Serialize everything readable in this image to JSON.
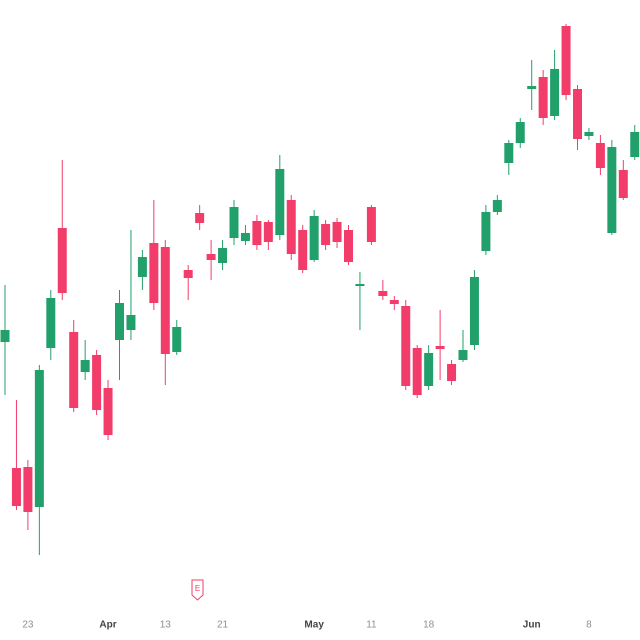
{
  "chart_data": {
    "type": "candlestick",
    "categories": [
      null,
      null,
      "23",
      null,
      null,
      null,
      null,
      null,
      null,
      "Apr",
      null,
      null,
      null,
      null,
      "13",
      null,
      null,
      null,
      null,
      "21",
      null,
      null,
      null,
      null,
      null,
      null,
      null,
      "May",
      null,
      null,
      null,
      null,
      "11",
      null,
      null,
      null,
      null,
      "18",
      null,
      null,
      null,
      null,
      null,
      null,
      null,
      null,
      "Jun",
      null,
      null,
      null,
      null,
      "8",
      null,
      null,
      null,
      null
    ],
    "open": [
      298,
      172,
      173,
      133,
      292,
      412,
      308,
      268,
      285,
      252,
      300,
      310,
      363,
      397,
      393,
      288,
      370,
      427,
      386,
      377,
      402,
      399,
      419,
      418,
      405,
      440,
      410,
      380,
      416,
      418,
      410,
      354,
      433,
      349,
      340,
      334,
      292,
      254,
      294,
      276,
      280,
      295,
      389,
      428,
      477,
      497,
      551,
      563,
      524,
      614,
      551,
      504,
      497,
      407,
      470,
      483
    ],
    "high": [
      355,
      240,
      180,
      275,
      350,
      480,
      320,
      300,
      290,
      260,
      350,
      410,
      390,
      440,
      400,
      320,
      375,
      435,
      400,
      400,
      440,
      415,
      425,
      420,
      485,
      445,
      415,
      430,
      420,
      422,
      415,
      368,
      435,
      360,
      344,
      340,
      295,
      295,
      330,
      280,
      310,
      370,
      435,
      445,
      500,
      522,
      580,
      570,
      590,
      616,
      555,
      512,
      505,
      500,
      480,
      515
    ],
    "low": [
      245,
      130,
      110,
      85,
      280,
      340,
      228,
      260,
      225,
      200,
      260,
      300,
      350,
      330,
      255,
      285,
      340,
      410,
      360,
      370,
      395,
      395,
      390,
      390,
      400,
      380,
      367,
      378,
      390,
      392,
      375,
      310,
      395,
      340,
      330,
      250,
      242,
      250,
      260,
      255,
      278,
      290,
      385,
      425,
      465,
      492,
      530,
      515,
      520,
      540,
      490,
      500,
      465,
      405,
      440,
      480
    ],
    "close": [
      310,
      134,
      128,
      270,
      342,
      347,
      232,
      280,
      230,
      205,
      337,
      325,
      383,
      337,
      286,
      313,
      362,
      417,
      380,
      392,
      433,
      407,
      395,
      398,
      471,
      386,
      370,
      424,
      395,
      398,
      378,
      356,
      398,
      344,
      336,
      254,
      245,
      287,
      291,
      259,
      290,
      363,
      428,
      440,
      497,
      518,
      554,
      522,
      571,
      545,
      501,
      508,
      472,
      493,
      442,
      508
    ],
    "up_color": "#22a06b",
    "down_color": "#f23d6a",
    "ylim": [
      0,
      640
    ]
  },
  "earnings_marker": "E"
}
